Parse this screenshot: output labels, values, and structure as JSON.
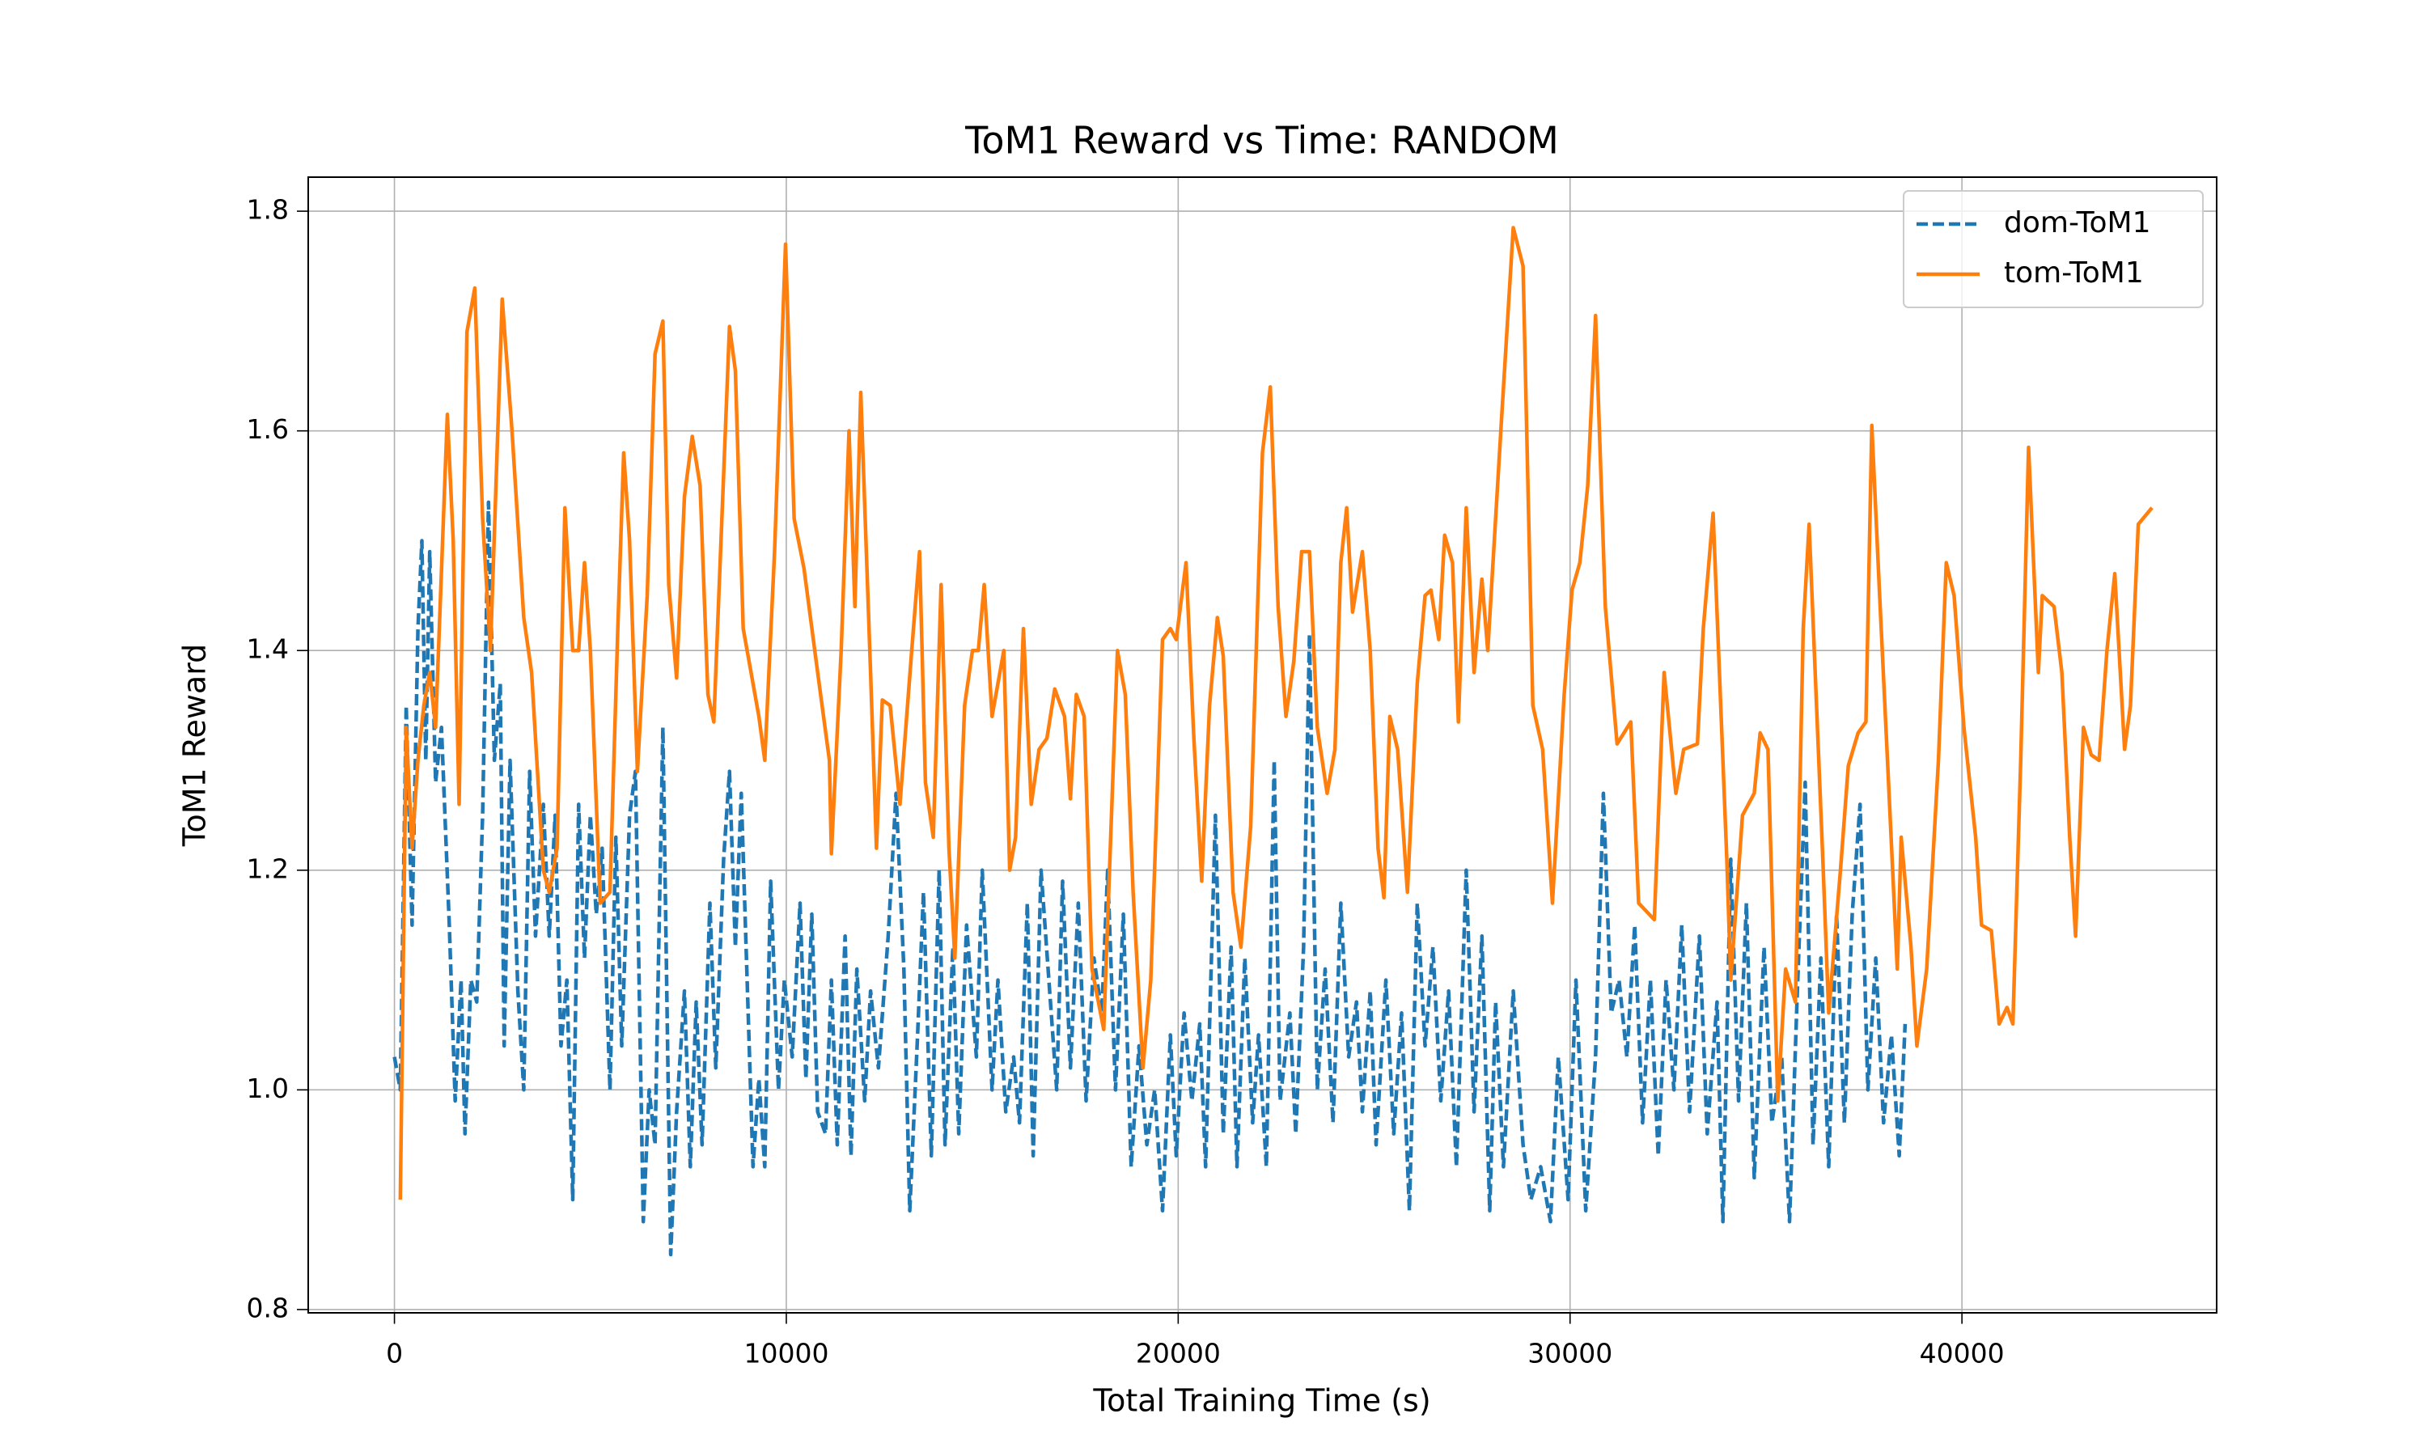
{
  "chart_data": {
    "type": "line",
    "title": "ToM1 Reward vs Time: RANDOM",
    "x_label": "Total Training Time (s)",
    "y_label": "ToM1 Reward",
    "xlim": [
      -2200,
      46500
    ],
    "ylim": [
      0.797,
      1.831
    ],
    "xticks": [
      0,
      10000,
      20000,
      30000,
      40000
    ],
    "yticks": [
      0.8,
      {
        "value": 1.0,
        "label": "1.0"
      },
      1.2,
      1.4,
      1.6,
      1.8
    ],
    "grid": true,
    "legend": "upper right",
    "series": [
      {
        "name": "dom-ToM1",
        "color": "#1f77b4",
        "linestyle": "dashed",
        "x": [
          0,
          150,
          300,
          450,
          600,
          700,
          800,
          900,
          1050,
          1200,
          1400,
          1550,
          1700,
          1800,
          1950,
          2100,
          2250,
          2400,
          2550,
          2700,
          2800,
          2950,
          3150,
          3300,
          3450,
          3600,
          3800,
          3950,
          4100,
          4250,
          4400,
          4550,
          4700,
          4850,
          5000,
          5150,
          5300,
          5500,
          5650,
          5800,
          6000,
          6150,
          6350,
          6500,
          6650,
          6850,
          7050,
          7200,
          7400,
          7550,
          7700,
          7850,
          8050,
          8200,
          8400,
          8550,
          8700,
          8850,
          9000,
          9150,
          9300,
          9450,
          9600,
          9800,
          9950,
          10150,
          10350,
          10500,
          10650,
          10800,
          11000,
          11150,
          11300,
          11500,
          11650,
          11800,
          12000,
          12150,
          12350,
          12600,
          12800,
          13000,
          13150,
          13350,
          13500,
          13700,
          13900,
          14050,
          14250,
          14400,
          14600,
          14850,
          15000,
          15250,
          15400,
          15600,
          15800,
          15950,
          16150,
          16300,
          16500,
          16700,
          16900,
          17050,
          17250,
          17450,
          17650,
          17850,
          18050,
          18200,
          18400,
          18600,
          18800,
          19000,
          19200,
          19400,
          19600,
          19800,
          19950,
          20150,
          20350,
          20550,
          20700,
          20950,
          21150,
          21350,
          21500,
          21700,
          21900,
          22050,
          22250,
          22450,
          22600,
          22850,
          23000,
          23200,
          23350,
          23550,
          23750,
          23950,
          24150,
          24350,
          24550,
          24700,
          24900,
          25050,
          25300,
          25500,
          25700,
          25900,
          26100,
          26300,
          26500,
          26700,
          26900,
          27100,
          27350,
          27550,
          27750,
          27950,
          28100,
          28300,
          28550,
          28800,
          29000,
          29250,
          29500,
          29700,
          29950,
          30150,
          30400,
          30650,
          30850,
          31050,
          31250,
          31450,
          31650,
          31850,
          32050,
          32250,
          32450,
          32650,
          32850,
          33050,
          33300,
          33500,
          33750,
          33900,
          34100,
          34300,
          34500,
          34700,
          34950,
          35150,
          35400,
          35600,
          35800,
          36000,
          36200,
          36400,
          36600,
          36800,
          37000,
          37200,
          37400,
          37600,
          37800,
          38000,
          38200,
          38400,
          38550
        ],
        "values": [
          1.03,
          1.0,
          1.35,
          1.15,
          1.42,
          1.5,
          1.3,
          1.49,
          1.28,
          1.33,
          1.15,
          0.99,
          1.1,
          0.96,
          1.1,
          1.08,
          1.25,
          1.535,
          1.3,
          1.37,
          1.04,
          1.3,
          1.09,
          1.0,
          1.29,
          1.14,
          1.26,
          1.14,
          1.25,
          1.04,
          1.1,
          0.9,
          1.26,
          1.12,
          1.25,
          1.16,
          1.22,
          1.0,
          1.23,
          1.04,
          1.25,
          1.29,
          0.88,
          1.0,
          0.95,
          1.33,
          0.85,
          0.98,
          1.09,
          0.93,
          1.08,
          0.95,
          1.17,
          1.02,
          1.21,
          1.29,
          1.13,
          1.27,
          1.1,
          0.93,
          1.01,
          0.93,
          1.19,
          1.0,
          1.1,
          1.03,
          1.17,
          1.01,
          1.16,
          0.98,
          0.96,
          1.1,
          0.95,
          1.14,
          0.94,
          1.11,
          0.99,
          1.09,
          1.02,
          1.14,
          1.27,
          1.11,
          0.89,
          1.05,
          1.18,
          0.94,
          1.2,
          0.95,
          1.13,
          0.96,
          1.15,
          1.03,
          1.2,
          1.0,
          1.1,
          0.98,
          1.03,
          0.97,
          1.17,
          0.94,
          1.2,
          1.1,
          1.0,
          1.19,
          1.02,
          1.17,
          0.99,
          1.12,
          1.07,
          1.2,
          1.0,
          1.16,
          0.93,
          1.04,
          0.95,
          1.0,
          0.89,
          1.05,
          0.94,
          1.07,
          0.99,
          1.06,
          0.93,
          1.25,
          0.96,
          1.13,
          0.93,
          1.12,
          0.97,
          1.05,
          0.93,
          1.3,
          0.99,
          1.07,
          0.96,
          1.13,
          1.415,
          1.0,
          1.11,
          0.97,
          1.17,
          1.03,
          1.08,
          0.98,
          1.09,
          0.95,
          1.1,
          0.96,
          1.07,
          0.89,
          1.17,
          1.04,
          1.13,
          0.99,
          1.09,
          0.93,
          1.2,
          0.98,
          1.14,
          0.89,
          1.08,
          0.93,
          1.09,
          0.95,
          0.9,
          0.93,
          0.88,
          1.03,
          0.9,
          1.1,
          0.89,
          1.03,
          1.27,
          1.07,
          1.1,
          1.03,
          1.15,
          0.97,
          1.1,
          0.94,
          1.1,
          1.0,
          1.15,
          0.98,
          1.14,
          0.96,
          1.08,
          0.88,
          1.21,
          0.99,
          1.17,
          0.92,
          1.13,
          0.97,
          1.03,
          0.88,
          1.09,
          1.28,
          0.95,
          1.12,
          0.93,
          1.16,
          0.97,
          1.16,
          1.26,
          1.0,
          1.12,
          0.97,
          1.05,
          0.94,
          1.06
        ]
      },
      {
        "name": "tom-ToM1",
        "color": "#ff7f0e",
        "linestyle": "solid",
        "x": [
          150,
          300,
          450,
          600,
          750,
          900,
          1050,
          1350,
          1500,
          1650,
          1850,
          2050,
          2250,
          2450,
          2750,
          3000,
          3300,
          3500,
          3800,
          3950,
          4150,
          4350,
          4550,
          4700,
          4850,
          5000,
          5250,
          5500,
          5700,
          5850,
          6000,
          6200,
          6450,
          6650,
          6850,
          7000,
          7200,
          7400,
          7600,
          7800,
          8000,
          8150,
          8400,
          8550,
          8700,
          8900,
          9100,
          9300,
          9450,
          9700,
          9980,
          10200,
          10450,
          10800,
          11100,
          11150,
          11400,
          11600,
          11750,
          11900,
          12150,
          12300,
          12450,
          12650,
          12900,
          13200,
          13400,
          13550,
          13750,
          13950,
          14150,
          14300,
          14550,
          14750,
          14900,
          15050,
          15250,
          15550,
          15700,
          15850,
          16050,
          16250,
          16450,
          16650,
          16850,
          17100,
          17250,
          17400,
          17600,
          17800,
          18100,
          18450,
          18650,
          18850,
          19100,
          19300,
          19600,
          19800,
          19950,
          20200,
          20400,
          20600,
          20800,
          21000,
          21150,
          21400,
          21600,
          21850,
          22150,
          22350,
          22550,
          22750,
          22950,
          23150,
          23350,
          23550,
          23800,
          24000,
          24150,
          24300,
          24450,
          24700,
          24900,
          25100,
          25250,
          25400,
          25600,
          25850,
          26100,
          26300,
          26450,
          26650,
          26800,
          27000,
          27150,
          27350,
          27550,
          27750,
          27900,
          28250,
          28550,
          28800,
          29050,
          29300,
          29550,
          29850,
          30050,
          30250,
          30450,
          30650,
          30900,
          31200,
          31550,
          31750,
          32150,
          32400,
          32700,
          32900,
          33250,
          33400,
          33650,
          34000,
          34100,
          34400,
          34700,
          34850,
          35050,
          35300,
          35500,
          35750,
          35950,
          36100,
          36450,
          36600,
          36900,
          37100,
          37350,
          37550,
          37700,
          37900,
          38100,
          38350,
          38450,
          38700,
          38850,
          39100,
          39400,
          39600,
          39800,
          40050,
          40350,
          40500,
          40750,
          40950,
          41150,
          41300,
          41500,
          41700,
          41950,
          42050,
          42350,
          42550,
          42750,
          42900,
          43100,
          43300,
          43500,
          43700,
          43900,
          44150,
          44300,
          44500,
          44850
        ],
        "values": [
          0.9,
          1.33,
          1.22,
          1.3,
          1.35,
          1.38,
          1.33,
          1.615,
          1.5,
          1.26,
          1.69,
          1.73,
          1.52,
          1.4,
          1.72,
          1.6,
          1.43,
          1.38,
          1.2,
          1.18,
          1.22,
          1.53,
          1.4,
          1.4,
          1.48,
          1.4,
          1.17,
          1.18,
          1.42,
          1.58,
          1.5,
          1.29,
          1.45,
          1.67,
          1.7,
          1.46,
          1.375,
          1.54,
          1.595,
          1.55,
          1.36,
          1.335,
          1.56,
          1.695,
          1.655,
          1.42,
          1.38,
          1.34,
          1.3,
          1.49,
          1.77,
          1.52,
          1.475,
          1.38,
          1.3,
          1.215,
          1.4,
          1.6,
          1.44,
          1.635,
          1.38,
          1.22,
          1.355,
          1.35,
          1.26,
          1.4,
          1.49,
          1.28,
          1.23,
          1.46,
          1.22,
          1.12,
          1.35,
          1.4,
          1.4,
          1.46,
          1.34,
          1.4,
          1.2,
          1.23,
          1.42,
          1.26,
          1.31,
          1.32,
          1.365,
          1.34,
          1.265,
          1.36,
          1.34,
          1.11,
          1.055,
          1.4,
          1.36,
          1.18,
          1.02,
          1.1,
          1.41,
          1.42,
          1.41,
          1.48,
          1.32,
          1.19,
          1.35,
          1.43,
          1.395,
          1.18,
          1.13,
          1.24,
          1.58,
          1.64,
          1.44,
          1.34,
          1.39,
          1.49,
          1.49,
          1.33,
          1.27,
          1.31,
          1.48,
          1.53,
          1.435,
          1.49,
          1.4,
          1.22,
          1.175,
          1.34,
          1.31,
          1.18,
          1.37,
          1.45,
          1.455,
          1.41,
          1.505,
          1.48,
          1.335,
          1.53,
          1.38,
          1.465,
          1.4,
          1.61,
          1.785,
          1.75,
          1.35,
          1.31,
          1.17,
          1.36,
          1.455,
          1.48,
          1.55,
          1.705,
          1.44,
          1.315,
          1.335,
          1.17,
          1.155,
          1.38,
          1.27,
          1.31,
          1.315,
          1.42,
          1.525,
          1.21,
          1.1,
          1.25,
          1.27,
          1.325,
          1.31,
          0.99,
          1.11,
          1.08,
          1.42,
          1.515,
          1.21,
          1.07,
          1.2,
          1.295,
          1.325,
          1.335,
          1.605,
          1.45,
          1.3,
          1.11,
          1.23,
          1.13,
          1.04,
          1.11,
          1.3,
          1.48,
          1.45,
          1.33,
          1.23,
          1.15,
          1.145,
          1.06,
          1.075,
          1.06,
          1.3,
          1.585,
          1.38,
          1.45,
          1.44,
          1.38,
          1.23,
          1.14,
          1.33,
          1.305,
          1.3,
          1.4,
          1.47,
          1.31,
          1.35,
          1.515,
          1.53
        ]
      }
    ]
  }
}
